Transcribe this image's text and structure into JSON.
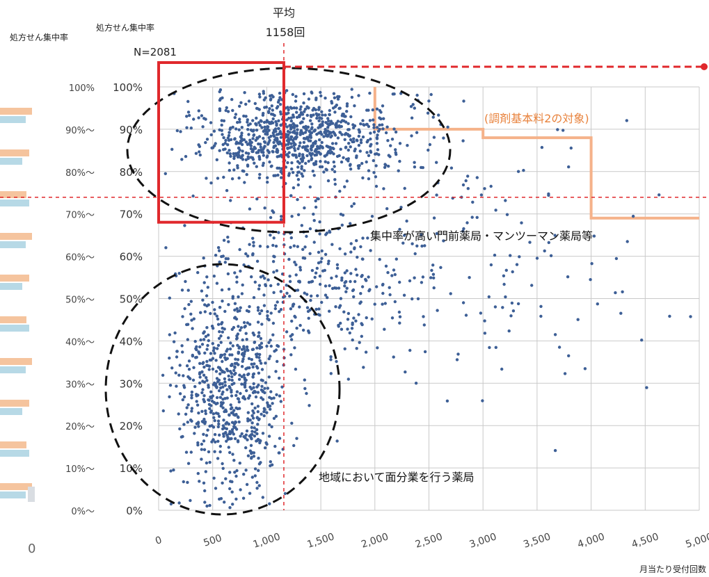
{
  "header": {
    "left_axis_title": "処方せん集中率",
    "right_axis_title": "処方せん集中率",
    "n_label": "N=2081",
    "mean_title": "平均",
    "mean_value_label": "1158回"
  },
  "bottom_left_zero": "0",
  "annotations": {
    "target_label": "(調剤基本料2の対象)",
    "high_concentration_label": "集中率が高い門前薬局・マンツーマン薬局等",
    "regional_label": "地域において面分業を行う薬局"
  },
  "colors": {
    "points": "#3d5f96",
    "highlight_box": "#e0282c",
    "mean_line": "#e0282c",
    "target_region": "#f5b28a",
    "target_text": "#e8823c",
    "grid": "#c9c9c9",
    "bar_orange": "#f5c49e",
    "bar_blue": "#b7d9e6",
    "bar_gray": "#d9dde2"
  },
  "left_bins": [
    "100%",
    "90%〜",
    "80%〜",
    "70%〜",
    "60%〜",
    "50%〜",
    "40%〜",
    "30%〜",
    "20%〜",
    "10%〜",
    "0%〜"
  ],
  "chart_data": {
    "type": "scatter",
    "title": "",
    "xlabel": "月当たり受付回数",
    "ylabel": "処方せん集中率",
    "xlim": [
      0,
      5000
    ],
    "ylim": [
      0,
      100
    ],
    "x_ticks": [
      "0",
      "500",
      "1,000",
      "1,500",
      "2,000",
      "2,500",
      "3,000",
      "3,500",
      "4,000",
      "4,500",
      "5,000"
    ],
    "y_ticks": [
      "0%",
      "10%",
      "20%",
      "30%",
      "40%",
      "50%",
      "60%",
      "70%",
      "80%",
      "90%",
      "100%"
    ],
    "n": 2081,
    "mean_x": 1158,
    "grid": true,
    "reference_lines": {
      "vertical_x": 1158,
      "horizontal_y": 70
    },
    "highlight_box": {
      "x_range": [
        0,
        1158
      ],
      "y_range": [
        70,
        100
      ]
    },
    "target_region": [
      [
        2000,
        90
      ],
      [
        3000,
        90
      ],
      [
        3000,
        88
      ],
      [
        4000,
        88
      ],
      [
        4000,
        69
      ],
      [
        5000,
        69
      ]
    ],
    "clusters": [
      {
        "x_mean": 1300,
        "x_spread": 800,
        "y_mean": 88,
        "y_spread": 9,
        "count": 900
      },
      {
        "x_mean": 650,
        "x_spread": 450,
        "y_mean": 30,
        "y_spread": 20,
        "count": 700
      },
      {
        "x_mean": 1500,
        "x_spread": 1000,
        "y_mean": 55,
        "y_spread": 18,
        "count": 380
      },
      {
        "x_mean": 3200,
        "x_spread": 1100,
        "y_mean": 60,
        "y_spread": 28,
        "count": 101
      }
    ]
  }
}
